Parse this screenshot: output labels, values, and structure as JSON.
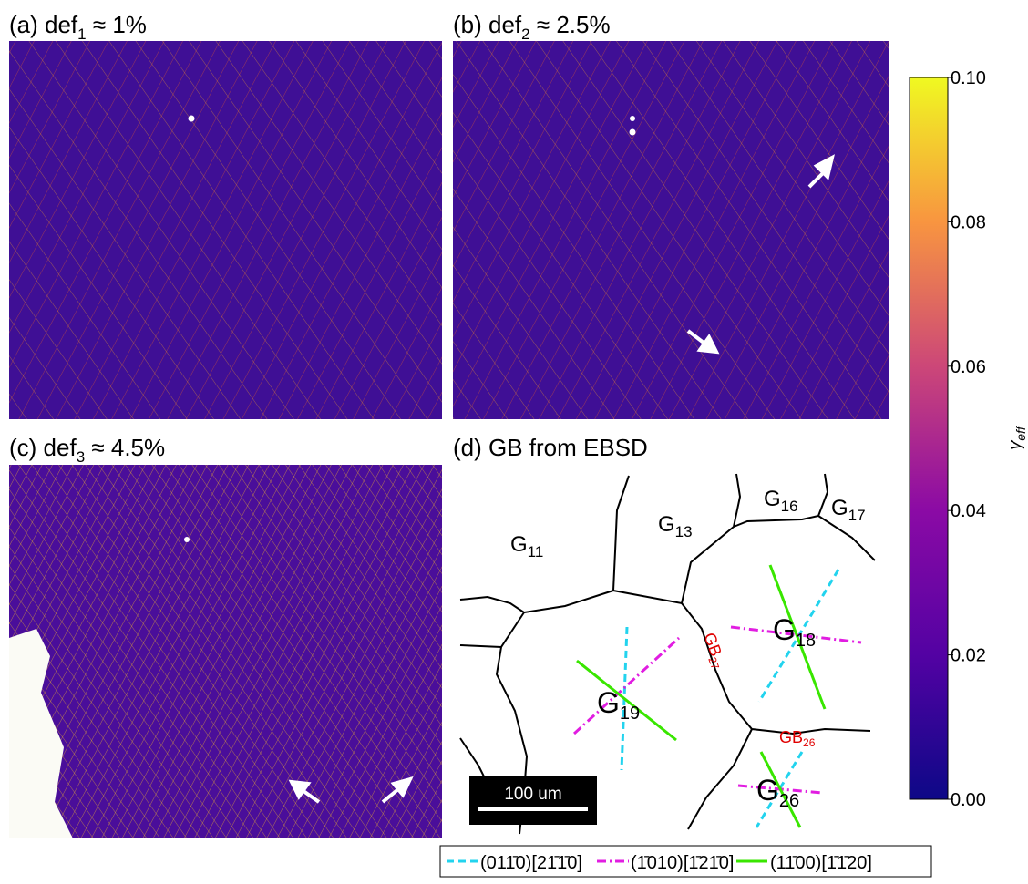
{
  "panels": [
    {
      "label": "(a) def",
      "sub": "1",
      "rest": " ≈ 1%"
    },
    {
      "label": "(b) def",
      "sub": "2",
      "rest": " ≈ 2.5%"
    },
    {
      "label": "(c) def",
      "sub": "3",
      "rest": " ≈ 4.5%"
    },
    {
      "label": "(d) GB from EBSD"
    }
  ],
  "grains": [
    {
      "name": "G",
      "sub": "11"
    },
    {
      "name": "G",
      "sub": "13"
    },
    {
      "name": "G",
      "sub": "16"
    },
    {
      "name": "G",
      "sub": "17"
    },
    {
      "name": "G",
      "sub": "18"
    },
    {
      "name": "G",
      "sub": "19"
    },
    {
      "name": "G",
      "sub": "26"
    }
  ],
  "boundaries": [
    {
      "name": "GB",
      "sub": "27"
    },
    {
      "name": "GB",
      "sub": "26"
    }
  ],
  "scale_bar": "100 um",
  "legend": [
    "(011̄0)[21̄1̄0]",
    "(1̄010)[1̄21̄0]",
    "(11̄00)[1̄1̄20]"
  ],
  "colorbar": {
    "label": "γ",
    "label_sub": "eff",
    "lim": [
      0,
      0.1
    ],
    "ticks": [
      {
        "value": 0,
        "label": "0.00"
      },
      {
        "value": 0.02,
        "label": "0.02"
      },
      {
        "value": 0.04,
        "label": "0.04"
      },
      {
        "value": 0.06,
        "label": "0.06"
      },
      {
        "value": 0.08,
        "label": "0.08"
      },
      {
        "value": 0.1,
        "label": "0.10"
      }
    ]
  }
}
